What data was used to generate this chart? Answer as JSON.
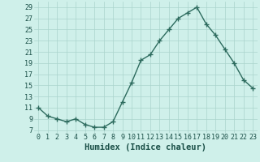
{
  "x": [
    0,
    1,
    2,
    3,
    4,
    5,
    6,
    7,
    8,
    9,
    10,
    11,
    12,
    13,
    14,
    15,
    16,
    17,
    18,
    19,
    20,
    21,
    22,
    23
  ],
  "y": [
    11,
    9.5,
    9,
    8.5,
    9,
    8,
    7.5,
    7.5,
    8.5,
    12,
    15.5,
    19.5,
    20.5,
    23,
    25,
    27,
    28,
    29,
    26,
    24,
    21.5,
    19,
    16,
    14.5
  ],
  "line_color": "#2d6b5e",
  "marker": "+",
  "markersize": 4,
  "linewidth": 1.0,
  "bg_color": "#cff0ea",
  "grid_color": "#aad4cc",
  "xlabel": "Humidex (Indice chaleur)",
  "xlabel_fontsize": 7.5,
  "xlabel_color": "#1a4f47",
  "xlabel_bold": true,
  "yticks": [
    7,
    9,
    11,
    13,
    15,
    17,
    19,
    21,
    23,
    25,
    27,
    29
  ],
  "ylim": [
    6.5,
    30
  ],
  "xlim": [
    -0.5,
    23.5
  ],
  "tick_fontsize": 6,
  "tick_color": "#1a4f47"
}
